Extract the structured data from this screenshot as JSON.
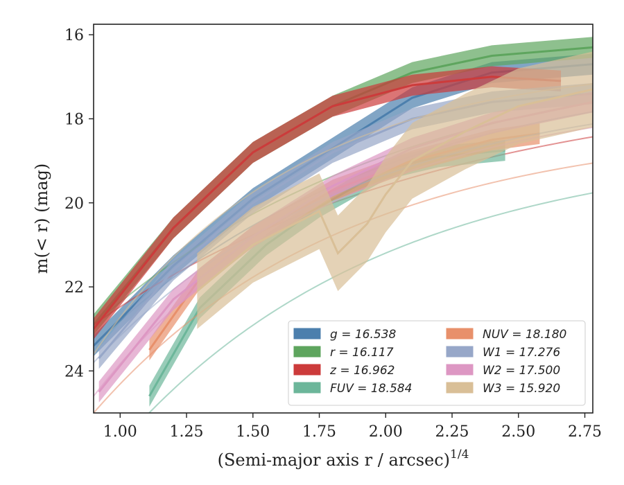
{
  "chart_data": {
    "type": "line",
    "xlabel": "(Semi-major axis r / arcsec)",
    "xlabel_sup": "1/4",
    "ylabel": "m(< r) (mag)",
    "xlim": [
      0.9,
      2.78
    ],
    "ylim": [
      25.0,
      15.75
    ],
    "y_inverted": true,
    "x_ticks": [
      1.0,
      1.25,
      1.5,
      1.75,
      2.0,
      2.25,
      2.5,
      2.75
    ],
    "x_tick_labels": [
      "1.00",
      "1.25",
      "1.50",
      "1.75",
      "2.00",
      "2.25",
      "2.50",
      "2.75"
    ],
    "y_ticks": [
      16,
      18,
      20,
      22,
      24
    ],
    "y_tick_labels": [
      "16",
      "18",
      "20",
      "22",
      "24"
    ],
    "grid": false,
    "legend_position": "lower-right",
    "series": [
      {
        "name": "g = 16.538",
        "color": "#4c7fad",
        "fit": {
          "m_inf": 16.6,
          "m0": 23.4,
          "s": 1.1
        },
        "data": {
          "x": [
            0.9,
            1.2,
            1.5,
            1.8,
            2.1,
            2.4,
            2.78
          ],
          "y": [
            23.4,
            21.5,
            19.9,
            18.7,
            17.5,
            16.9,
            16.7
          ]
        }
      },
      {
        "name": "r = 16.117",
        "color": "#5ea55e",
        "fit": {
          "m_inf": 16.2,
          "m0": 22.9,
          "s": 1.2
        },
        "data": {
          "x": [
            0.9,
            1.2,
            1.5,
            1.8,
            2.1,
            2.4,
            2.78
          ],
          "y": [
            22.9,
            20.6,
            18.8,
            17.7,
            16.9,
            16.5,
            16.3
          ]
        }
      },
      {
        "name": "z = 16.962",
        "color": "#cc3b3b",
        "fit": {
          "m_inf": 16.95,
          "m0": 22.9,
          "s": 1.35
        },
        "data": {
          "x": [
            0.9,
            1.2,
            1.5,
            1.8,
            2.1,
            2.4,
            2.66
          ],
          "y": [
            23.0,
            20.6,
            18.8,
            17.7,
            17.2,
            17.0,
            17.1
          ]
        }
      },
      {
        "name": "FUV = 18.584",
        "color": "#6cb69a",
        "fit": {
          "m_inf": 18.55,
          "m0": 26.5,
          "s": 1.0
        },
        "data": {
          "x": [
            1.11,
            1.3,
            1.55,
            1.75,
            2.0,
            2.2,
            2.45
          ],
          "y": [
            24.6,
            22.5,
            21.0,
            20.1,
            19.2,
            18.9,
            18.75
          ]
        }
      },
      {
        "name": "NUV = 18.180",
        "color": "#e8906b",
        "fit": {
          "m_inf": 18.1,
          "m0": 25.0,
          "s": 0.95
        },
        "data": {
          "x": [
            1.11,
            1.3,
            1.5,
            1.8,
            2.1,
            2.4,
            2.58
          ],
          "y": [
            23.5,
            21.8,
            20.8,
            19.7,
            19.0,
            18.5,
            18.35
          ]
        }
      },
      {
        "name": "W1 = 17.276",
        "color": "#97a7c8",
        "fit": {
          "m_inf": 17.1,
          "m0": 23.8,
          "s": 1.0
        },
        "data": {
          "x": [
            0.92,
            1.2,
            1.5,
            1.8,
            2.1,
            2.4,
            2.78
          ],
          "y": [
            23.7,
            21.6,
            20.0,
            18.8,
            18.0,
            17.6,
            17.4
          ]
        }
      },
      {
        "name": "W2 = 17.500",
        "color": "#dd97c3",
        "fit": {
          "m_inf": 17.3,
          "m0": 24.6,
          "s": 0.9
        },
        "data": {
          "x": [
            0.92,
            1.2,
            1.5,
            1.8,
            2.1,
            2.4,
            2.78
          ],
          "y": [
            24.5,
            22.3,
            20.8,
            19.6,
            18.7,
            18.1,
            17.6
          ]
        }
      },
      {
        "name": "W3 = 15.920",
        "color": "#d9bf97",
        "fit": {
          "m_inf": 16.6,
          "m0": 23.6,
          "s": 0.75
        },
        "data": {
          "x": [
            1.29,
            1.5,
            1.75,
            1.82,
            1.93,
            2.0,
            2.1,
            2.3,
            2.5,
            2.78
          ],
          "y": [
            22.1,
            21.0,
            20.2,
            21.2,
            20.5,
            19.8,
            19.0,
            18.3,
            17.7,
            17.3
          ]
        }
      }
    ]
  }
}
